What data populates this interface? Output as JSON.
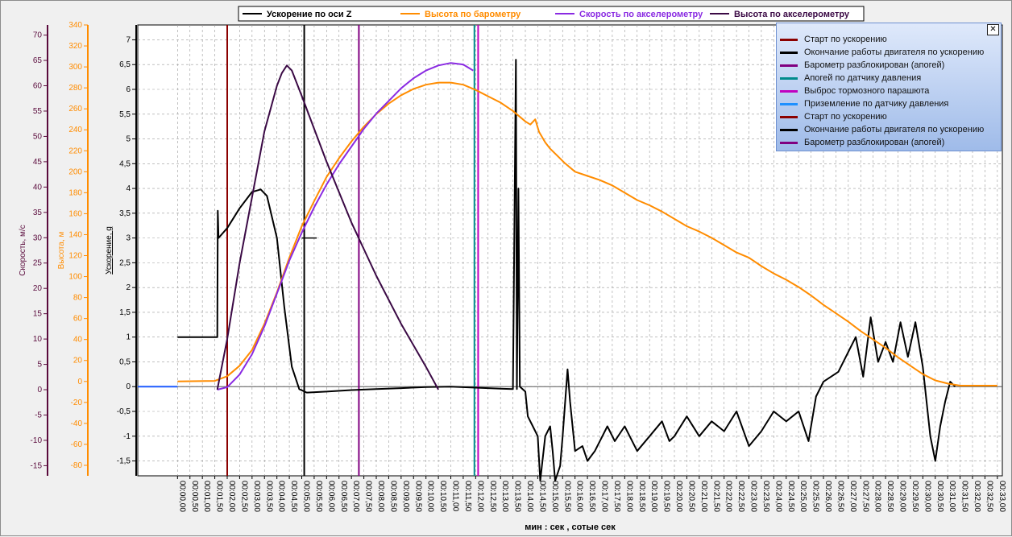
{
  "chart_data": {
    "type": "line",
    "xlabel": "мин : сек , сотые сек",
    "x_ticks": [
      "00:00,00",
      "00:00,50",
      "00:01,00",
      "00:01,50",
      "00:02,00",
      "00:02,50",
      "00:03,00",
      "00:03,50",
      "00:04,00",
      "00:04,50",
      "00:05,00",
      "00:05,50",
      "00:06,00",
      "00:06,50",
      "00:07,00",
      "00:07,50",
      "00:08,00",
      "00:08,50",
      "00:09,00",
      "00:09,50",
      "00:10,00",
      "00:10,50",
      "00:11,00",
      "00:11,50",
      "00:12,00",
      "00:12,50",
      "00:13,00",
      "00:13,50",
      "00:14,00",
      "00:14,50",
      "00:15,00",
      "00:15,50",
      "00:16,00",
      "00:16,50",
      "00:17,00",
      "00:17,50",
      "00:18,00",
      "00:18,50",
      "00:19,00",
      "00:19,50",
      "00:20,00",
      "00:20,50",
      "00:21,00",
      "00:21,50",
      "00:22,00",
      "00:22,50",
      "00:23,00",
      "00:23,50",
      "00:24,00",
      "00:24,50",
      "00:25,00",
      "00:25,50",
      "00:26,00",
      "00:26,50",
      "00:27,00",
      "00:27,50",
      "00:28,00",
      "00:28,50",
      "00:29,00",
      "00:29,50",
      "00:30,00",
      "00:30,50",
      "00:31,00",
      "00:31,50",
      "00:32,00",
      "00:32,50",
      "00:33,00"
    ],
    "axes": [
      {
        "label": "Скорость, м/с",
        "color": "#5a0a3c",
        "min": -17,
        "max": 72,
        "ticks": [
          -15,
          -10,
          -5,
          0,
          5,
          10,
          15,
          20,
          25,
          30,
          35,
          40,
          45,
          50,
          55,
          60,
          65,
          70
        ]
      },
      {
        "label": "Высота, м",
        "color": "#ff8c00",
        "min": -90,
        "max": 340,
        "ticks": [
          -80,
          -60,
          -40,
          -20,
          0,
          20,
          40,
          60,
          80,
          100,
          120,
          140,
          160,
          180,
          200,
          220,
          240,
          260,
          280,
          300,
          320,
          340
        ]
      },
      {
        "label": "Ускорение, g",
        "color": "#000000",
        "min": -1.8,
        "max": 7.3,
        "ticks": [
          "-1,5",
          "-1",
          "-0,5",
          "0",
          "0,5",
          "1",
          "1,5",
          "2",
          "2,5",
          "3",
          "3,5",
          "4",
          "4,5",
          "5",
          "5,5",
          "6",
          "6,5",
          "7"
        ],
        "tick_values": [
          -1.5,
          -1,
          -0.5,
          0,
          0.5,
          1,
          1.5,
          2,
          2.5,
          3,
          3.5,
          4,
          4.5,
          5,
          5.5,
          6,
          6.5,
          7
        ]
      }
    ],
    "series": [
      {
        "name": "Ускорение по оси Z",
        "color": "#000000",
        "axis": 2,
        "points": [
          [
            0,
            1
          ],
          [
            1.6,
            1
          ],
          [
            1.62,
            3.55
          ],
          [
            1.65,
            3.0
          ],
          [
            2.0,
            3.2
          ],
          [
            2.5,
            3.6
          ],
          [
            3.0,
            3.93
          ],
          [
            3.35,
            3.98
          ],
          [
            3.6,
            3.85
          ],
          [
            4.0,
            3.0
          ],
          [
            4.3,
            1.6
          ],
          [
            4.6,
            0.4
          ],
          [
            4.9,
            -0.05
          ],
          [
            5.2,
            -0.12
          ],
          [
            6,
            -0.1
          ],
          [
            7,
            -0.07
          ],
          [
            8,
            -0.05
          ],
          [
            9,
            -0.03
          ],
          [
            10,
            -0.01
          ],
          [
            11,
            0
          ],
          [
            12,
            -0.02
          ],
          [
            13,
            -0.04
          ],
          [
            13.5,
            -0.05
          ],
          [
            13.62,
            6.6
          ],
          [
            13.66,
            -0.05
          ],
          [
            13.72,
            4.0
          ],
          [
            13.78,
            0
          ],
          [
            14.0,
            -0.1
          ],
          [
            14.1,
            -0.6
          ],
          [
            14.3,
            -0.8
          ],
          [
            14.5,
            -1.0
          ],
          [
            14.6,
            -1.9
          ],
          [
            14.8,
            -1.0
          ],
          [
            15.0,
            -0.8
          ],
          [
            15.1,
            -1.3
          ],
          [
            15.2,
            -1.9
          ],
          [
            15.4,
            -1.6
          ],
          [
            15.5,
            -1.0
          ],
          [
            15.7,
            0.35
          ],
          [
            15.8,
            -0.3
          ],
          [
            16.0,
            -1.3
          ],
          [
            16.3,
            -1.2
          ],
          [
            16.5,
            -1.5
          ],
          [
            16.8,
            -1.3
          ],
          [
            17.0,
            -1.1
          ],
          [
            17.3,
            -0.8
          ],
          [
            17.6,
            -1.1
          ],
          [
            18.0,
            -0.8
          ],
          [
            18.5,
            -1.3
          ],
          [
            19.0,
            -1.0
          ],
          [
            19.5,
            -0.7
          ],
          [
            19.8,
            -1.1
          ],
          [
            20.0,
            -1.0
          ],
          [
            20.5,
            -0.6
          ],
          [
            21.0,
            -1.0
          ],
          [
            21.5,
            -0.7
          ],
          [
            22.0,
            -0.9
          ],
          [
            22.5,
            -0.5
          ],
          [
            23.0,
            -1.2
          ],
          [
            23.5,
            -0.9
          ],
          [
            24.0,
            -0.5
          ],
          [
            24.5,
            -0.7
          ],
          [
            25.0,
            -0.5
          ],
          [
            25.4,
            -1.1
          ],
          [
            25.7,
            -0.2
          ],
          [
            26.0,
            0.1
          ],
          [
            26.3,
            0.2
          ],
          [
            26.6,
            0.3
          ],
          [
            27.0,
            0.7
          ],
          [
            27.3,
            1.0
          ],
          [
            27.6,
            0.2
          ],
          [
            27.9,
            1.4
          ],
          [
            28.2,
            0.5
          ],
          [
            28.5,
            0.9
          ],
          [
            28.8,
            0.5
          ],
          [
            29.1,
            1.3
          ],
          [
            29.4,
            0.6
          ],
          [
            29.7,
            1.3
          ],
          [
            30.0,
            0.4
          ],
          [
            30.3,
            -1.0
          ],
          [
            30.5,
            -1.5
          ],
          [
            30.7,
            -0.8
          ],
          [
            30.9,
            -0.3
          ],
          [
            31.1,
            0.1
          ],
          [
            31.3,
            0
          ]
        ]
      },
      {
        "name": "Высота по барометру",
        "color": "#ff8c00",
        "axis": 1,
        "points": [
          [
            0,
            0
          ],
          [
            1.5,
            0.5
          ],
          [
            2,
            5
          ],
          [
            2.5,
            15
          ],
          [
            3,
            30
          ],
          [
            3.5,
            55
          ],
          [
            4,
            85
          ],
          [
            4.5,
            118
          ],
          [
            5,
            148
          ],
          [
            5.5,
            172
          ],
          [
            6,
            195
          ],
          [
            6.5,
            213
          ],
          [
            7,
            229
          ],
          [
            7.5,
            243
          ],
          [
            8,
            255
          ],
          [
            8.5,
            265
          ],
          [
            9,
            273
          ],
          [
            9.5,
            279
          ],
          [
            10,
            283
          ],
          [
            10.5,
            285
          ],
          [
            11,
            285
          ],
          [
            11.5,
            283
          ],
          [
            12,
            278
          ],
          [
            12.5,
            272
          ],
          [
            13,
            266
          ],
          [
            13.5,
            258
          ],
          [
            14,
            248
          ],
          [
            14.2,
            245
          ],
          [
            14.4,
            250
          ],
          [
            14.55,
            238
          ],
          [
            14.8,
            228
          ],
          [
            15,
            222
          ],
          [
            15.3,
            215
          ],
          [
            15.6,
            208
          ],
          [
            16,
            200
          ],
          [
            16.5,
            196
          ],
          [
            17,
            192
          ],
          [
            17.5,
            187
          ],
          [
            18,
            180
          ],
          [
            18.5,
            173
          ],
          [
            19,
            168
          ],
          [
            19.5,
            162
          ],
          [
            20,
            155
          ],
          [
            20.5,
            148
          ],
          [
            21,
            143
          ],
          [
            21.5,
            137
          ],
          [
            22,
            130
          ],
          [
            22.5,
            123
          ],
          [
            23,
            118
          ],
          [
            23.5,
            110
          ],
          [
            24,
            103
          ],
          [
            24.5,
            97
          ],
          [
            25,
            90
          ],
          [
            25.5,
            82
          ],
          [
            26,
            73
          ],
          [
            26.5,
            65
          ],
          [
            27,
            57
          ],
          [
            27.5,
            48
          ],
          [
            28,
            40
          ],
          [
            28.5,
            32
          ],
          [
            29,
            23
          ],
          [
            29.5,
            15
          ],
          [
            30,
            7
          ],
          [
            30.5,
            1
          ],
          [
            31,
            -2
          ],
          [
            31.5,
            -4
          ],
          [
            32,
            -4
          ],
          [
            32.5,
            -4
          ],
          [
            33,
            -4
          ]
        ]
      },
      {
        "name": "Скорость по акселерометру",
        "color": "#8a2be2",
        "axis": 0,
        "points": [
          [
            1.6,
            0
          ],
          [
            2,
            0.5
          ],
          [
            2.5,
            3
          ],
          [
            3,
            7
          ],
          [
            3.5,
            12.5
          ],
          [
            4,
            19
          ],
          [
            4.5,
            25.5
          ],
          [
            5,
            31
          ],
          [
            5.5,
            36
          ],
          [
            6,
            40.5
          ],
          [
            6.5,
            44.5
          ],
          [
            7,
            48
          ],
          [
            7.5,
            51.5
          ],
          [
            8,
            54.5
          ],
          [
            8.5,
            57
          ],
          [
            9,
            59.5
          ],
          [
            9.5,
            61.5
          ],
          [
            10,
            63
          ],
          [
            10.5,
            64
          ],
          [
            11,
            64.5
          ],
          [
            11.5,
            64.2
          ],
          [
            11.9,
            63
          ]
        ]
      },
      {
        "name": "Высота по акселерометру",
        "color": "#3b0a45",
        "axis": 0,
        "points": [
          [
            1.6,
            0
          ],
          [
            2,
            10
          ],
          [
            2.5,
            25
          ],
          [
            3,
            38
          ],
          [
            3.5,
            51
          ],
          [
            4,
            60
          ],
          [
            4.2,
            62.5
          ],
          [
            4.4,
            64
          ],
          [
            4.6,
            63
          ],
          [
            5,
            58
          ],
          [
            6,
            45
          ],
          [
            7,
            33
          ],
          [
            8,
            22.5
          ],
          [
            9,
            13
          ],
          [
            10,
            4.5
          ],
          [
            10.5,
            0
          ]
        ]
      }
    ],
    "markers": [
      {
        "name": "Старт по ускорению",
        "color": "#8b0000",
        "x": 2.0
      },
      {
        "name": "Окончание работы двигателя по ускорению",
        "color": "#000000",
        "x": 5.1
      },
      {
        "name": "Барометр разблокирован (апогей)",
        "color": "#800080",
        "x": 7.3
      },
      {
        "name": "Апогей по датчику давления",
        "color": "#008b8b",
        "x": 11.95
      },
      {
        "name": "Выброс тормозного парашюта",
        "color": "#c000c0",
        "x": 12.1
      }
    ],
    "legend_top": [
      "Ускорение по оси Z",
      "Высота по барометру",
      "Скорость по акселерометру",
      "Высота по акселерометру"
    ],
    "legend_panel": [
      {
        "label": "Старт по ускорению",
        "color": "#8b0000"
      },
      {
        "label": "Окончание работы двигателя по ускорению",
        "color": "#000000"
      },
      {
        "label": "Барометр разблокирован (апогей)",
        "color": "#800080"
      },
      {
        "label": "Апогей по датчику давления",
        "color": "#008b8b"
      },
      {
        "label": "Выброс тормозного парашюта",
        "color": "#c000c0"
      },
      {
        "label": "Приземление по датчику давления",
        "color": "#1e90ff"
      },
      {
        "label": "Старт по ускорению",
        "color": "#8b0000"
      },
      {
        "label": "Окончание работы двигателя по ускорению",
        "color": "#000000"
      },
      {
        "label": "Барометр разблокирован (апогей)",
        "color": "#800080"
      }
    ],
    "grid": true,
    "legend_placement": "top-right"
  }
}
